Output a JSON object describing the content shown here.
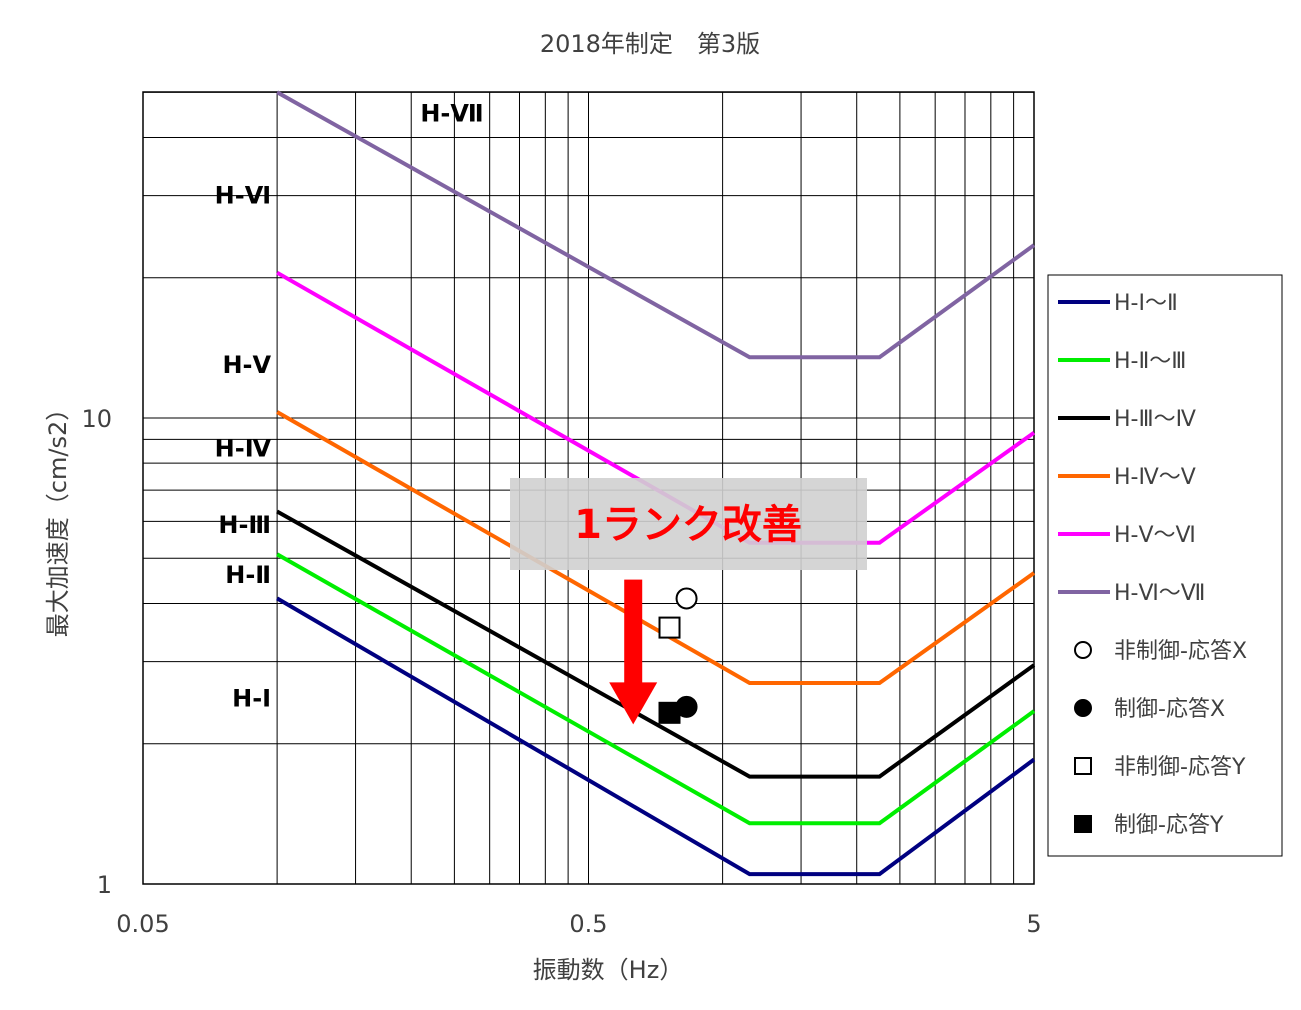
{
  "chart_data": {
    "type": "line",
    "title": "2018年制定　第3版",
    "xlabel": "振動数（Hz）",
    "ylabel": "最大加速度（cm/s2）",
    "x_scale": "log",
    "y_scale": "log",
    "xlim": [
      0.05,
      5
    ],
    "ylim": [
      1,
      50
    ],
    "x_tick_labels": [
      {
        "value": 0.05,
        "label": "0.05"
      },
      {
        "value": 0.5,
        "label": "0.5"
      },
      {
        "value": 5,
        "label": "5"
      }
    ],
    "y_tick_labels": [
      {
        "value": 1,
        "label": "1"
      },
      {
        "value": 10,
        "label": "10"
      }
    ],
    "grid": true,
    "legend_position": "right",
    "region_labels": [
      {
        "text": "H-Ⅶ",
        "x": 0.3,
        "y": 45
      },
      {
        "text": "H-Ⅵ",
        "x": 0.1,
        "y": 30
      },
      {
        "text": "H-Ⅴ",
        "x": 0.1,
        "y": 13
      },
      {
        "text": "H-Ⅳ",
        "x": 0.1,
        "y": 8.6
      },
      {
        "text": "H-Ⅲ",
        "x": 0.1,
        "y": 5.9
      },
      {
        "text": "H-Ⅱ",
        "x": 0.1,
        "y": 4.6
      },
      {
        "text": "H-Ⅰ",
        "x": 0.1,
        "y": 2.5
      }
    ],
    "series": [
      {
        "name": "H-Ⅰ～Ⅱ",
        "color": "#000080",
        "x": [
          0.1,
          1.15,
          2.25,
          5
        ],
        "y": [
          4.1,
          1.05,
          1.05,
          1.85
        ]
      },
      {
        "name": "H-Ⅱ～Ⅲ",
        "color": "#00ee00",
        "x": [
          0.1,
          1.15,
          2.25,
          5
        ],
        "y": [
          5.1,
          1.35,
          1.35,
          2.35
        ]
      },
      {
        "name": "H-Ⅲ～Ⅳ",
        "color": "#000000",
        "x": [
          0.1,
          1.15,
          2.25,
          5
        ],
        "y": [
          6.3,
          1.7,
          1.7,
          2.95
        ]
      },
      {
        "name": "H-Ⅳ～Ⅴ",
        "color": "#ff6600",
        "x": [
          0.1,
          1.15,
          2.25,
          5
        ],
        "y": [
          10.3,
          2.7,
          2.7,
          4.65
        ]
      },
      {
        "name": "H-Ⅴ～Ⅵ",
        "color": "#ff00ff",
        "x": [
          0.1,
          1.15,
          2.25,
          5
        ],
        "y": [
          20.5,
          5.4,
          5.4,
          9.3
        ]
      },
      {
        "name": "H-Ⅵ～Ⅶ",
        "color": "#8064a2",
        "x": [
          0.1,
          1.15,
          2.25,
          5
        ],
        "y": [
          50,
          13.5,
          13.5,
          23.5
        ]
      }
    ],
    "markers": [
      {
        "name": "非制御-応答X",
        "shape": "circle",
        "filled": false,
        "x": 0.83,
        "y": 4.1
      },
      {
        "name": "制御-応答X",
        "shape": "circle",
        "filled": true,
        "x": 0.83,
        "y": 2.4
      },
      {
        "name": "非制御-応答Y",
        "shape": "square",
        "filled": false,
        "x": 0.76,
        "y": 3.55
      },
      {
        "name": "制御-応答Y",
        "shape": "square",
        "filled": true,
        "x": 0.76,
        "y": 2.33
      }
    ],
    "annotation": {
      "text": "1ランク改善",
      "color": "#ff0000",
      "box_color": "#d0d0d0"
    },
    "arrow": {
      "color": "#ff0000",
      "x": 0.63,
      "y_from": 4.5,
      "y_to": 2.2
    }
  }
}
